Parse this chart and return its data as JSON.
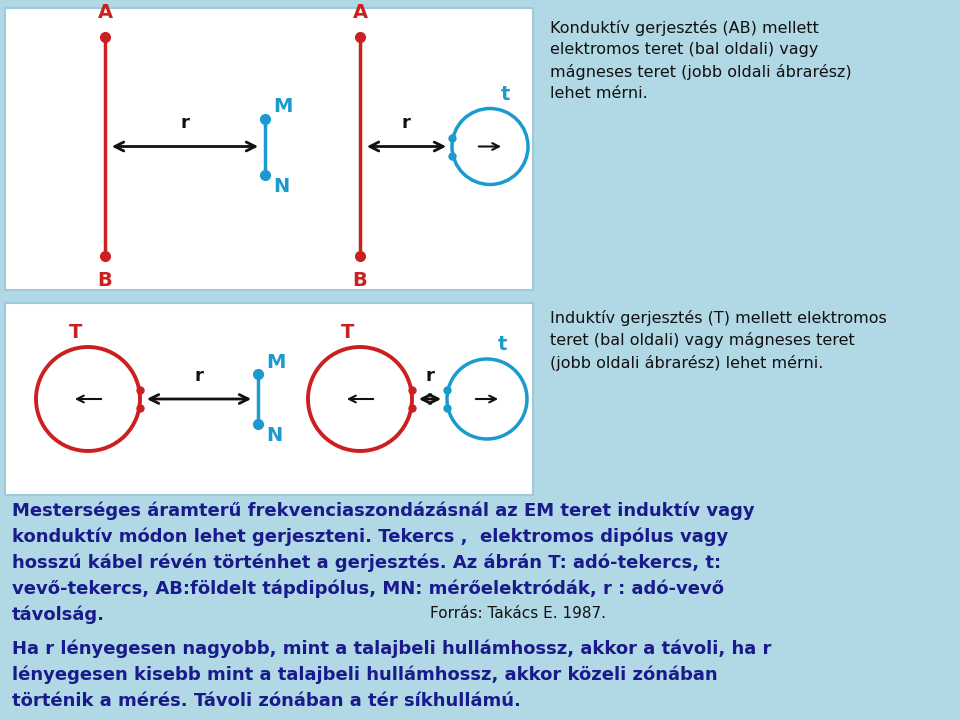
{
  "bg_color": "#b0d8e5",
  "panel_bg": "#ffffff",
  "red": "#cc2020",
  "blue": "#1a9acf",
  "dark_blue": "#1a1a8c",
  "black": "#111111",
  "text1": "Konduktív gerjesztés (AB) mellett\nelektromos teret (bal oldali) vagy\nmágneses teret (jobb oldali ábrarész)\nlehet mérni.",
  "text2": "Induktív gerjesztés (T) mellett elektromos\nteret (bal oldali) vagy mágneses teret\n(jobb oldali ábrarész) lehet mérni.",
  "text3_line1": "Mesterséges áramterű frekvenciaszondázásnál az EM teret induktív vagy",
  "text3_line2": "konduktív módon lehet gerjeszteni. Tekercs ,  elektromos dipólus vagy",
  "text3_line3": "hosszú kábel révén történhet a gerjesztés. Az ábrán T: adó-tekercs, t:",
  "text3_line4": "vevő-tekercs, AB:földelt tápdipólus, MN: mérőelektródák, r : adó-vevő",
  "text3_line5": "távolság.",
  "text4_line1": "Ha r lényegesen nagyobb, mint a talajbeli hullámhossz, akkor a távoli, ha r",
  "text4_line2": "lényegesen kisebb mint a talajbeli hullámhossz, akkor közeli zónában",
  "text4_line3": "történik a mérés. Távoli zónában a tér síkhullámú.",
  "source": "Forrás: Takács E. 1987."
}
